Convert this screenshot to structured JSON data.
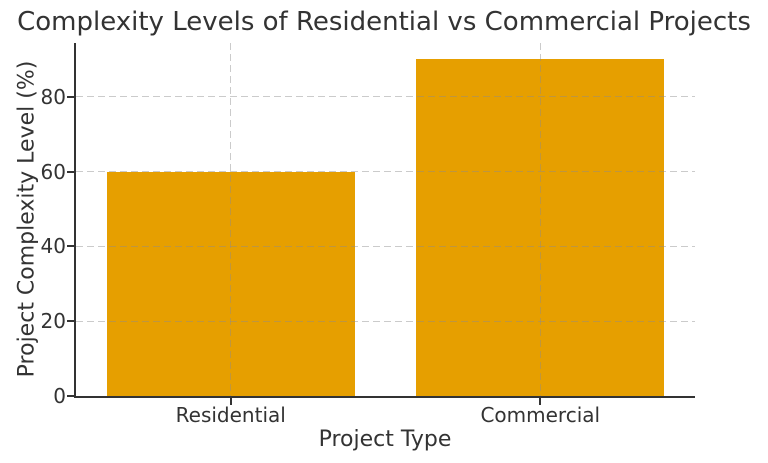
{
  "title": "Complexity Levels of Residential vs Commercial Projects",
  "chart_data": {
    "type": "bar",
    "categories": [
      "Residential",
      "Commercial"
    ],
    "values": [
      60,
      90
    ],
    "title": "Complexity Levels of Residential vs Commercial Projects",
    "xlabel": "Project Type",
    "ylabel": "Project Complexity Level (%)",
    "ylim": [
      0,
      94.4
    ],
    "yticks": [
      0,
      20,
      40,
      60,
      80
    ],
    "bar_width_fraction_of_slot": 0.8,
    "grid": "dashed, horizontal at yticks and vertical at category centers, drawn over bars",
    "legend": "none"
  },
  "colors": {
    "bar": "#E69F00",
    "text": "#333333",
    "spine": "#333333",
    "grid": "#c8c8c8",
    "background": "#ffffff"
  }
}
